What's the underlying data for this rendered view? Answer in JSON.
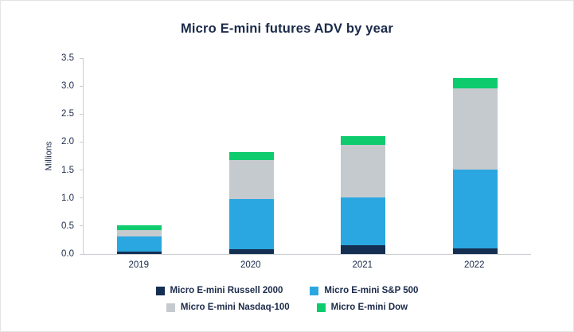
{
  "chart_data": {
    "type": "bar",
    "stacked": true,
    "title": "Micro E-mini futures ADV by year",
    "ylabel": "Millions",
    "xlabel": "",
    "categories": [
      "2019",
      "2020",
      "2021",
      "2022"
    ],
    "series": [
      {
        "name": "Micro E-mini Russell 2000",
        "color": "#142f52",
        "values": [
          0.05,
          0.08,
          0.16,
          0.1
        ]
      },
      {
        "name": "Micro E-mini S&P 500",
        "color": "#2aa7e0",
        "values": [
          0.26,
          0.9,
          0.85,
          1.41
        ]
      },
      {
        "name": "Micro E-mini Nasdaq-100",
        "color": "#c5cacf",
        "values": [
          0.12,
          0.7,
          0.94,
          1.45
        ]
      },
      {
        "name": "Micro E-mini Dow",
        "color": "#0ecb6e",
        "values": [
          0.08,
          0.14,
          0.15,
          0.18
        ]
      }
    ],
    "totals": [
      0.51,
      1.82,
      2.1,
      3.14
    ],
    "ylim": [
      0,
      3.5
    ],
    "yticks": [
      0.0,
      0.5,
      1.0,
      1.5,
      2.0,
      2.5,
      3.0,
      3.5
    ],
    "ytick_labels": [
      "0.0",
      "0.5",
      "1.0",
      "1.5",
      "2.0",
      "2.5",
      "3.0",
      "3.5"
    ],
    "grid": false,
    "legend_position": "bottom",
    "legend_rows": [
      [
        "Micro E-mini Russell 2000",
        "Micro E-mini S&P 500"
      ],
      [
        "Micro E-mini Nasdaq-100",
        "Micro E-mini Dow"
      ]
    ]
  },
  "colors": {
    "title_text": "#1b2a4a",
    "axis_line": "#c9cdd2",
    "background": "#ffffff"
  }
}
